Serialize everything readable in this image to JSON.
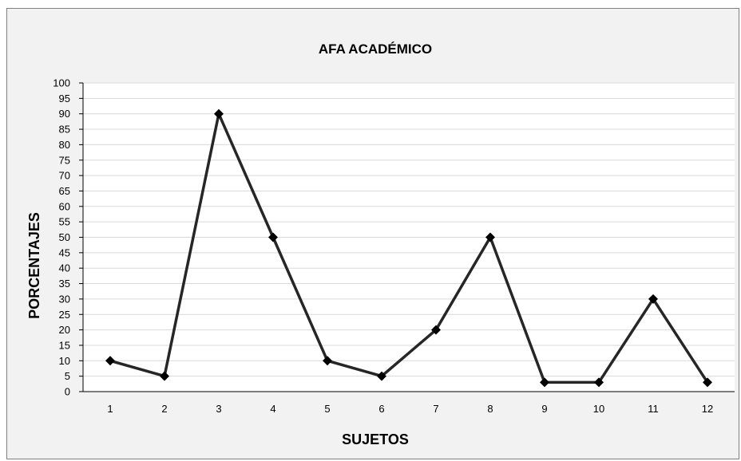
{
  "chart_data": {
    "type": "line",
    "title": "AFA ACADÉMICO",
    "xlabel": "SUJETOS",
    "ylabel": "PORCENTAJES",
    "categories": [
      "1",
      "2",
      "3",
      "4",
      "5",
      "6",
      "7",
      "8",
      "9",
      "10",
      "11",
      "12"
    ],
    "series": [
      {
        "values": [
          10,
          5,
          90,
          50,
          10,
          5,
          20,
          50,
          3,
          3,
          30,
          3
        ]
      }
    ],
    "ylim": [
      0,
      100
    ],
    "yticks": [
      0,
      5,
      10,
      15,
      20,
      25,
      30,
      35,
      40,
      45,
      50,
      55,
      60,
      65,
      70,
      75,
      80,
      85,
      90,
      95,
      100
    ],
    "grid": true,
    "legend": "none",
    "marker": "diamond",
    "colors": {
      "line": "#262626",
      "marker": "#000000",
      "plot_background": "#ffffff",
      "chart_background": "#f2f2f2",
      "gridline": "#d9d9d9",
      "axis": "#000000"
    }
  }
}
